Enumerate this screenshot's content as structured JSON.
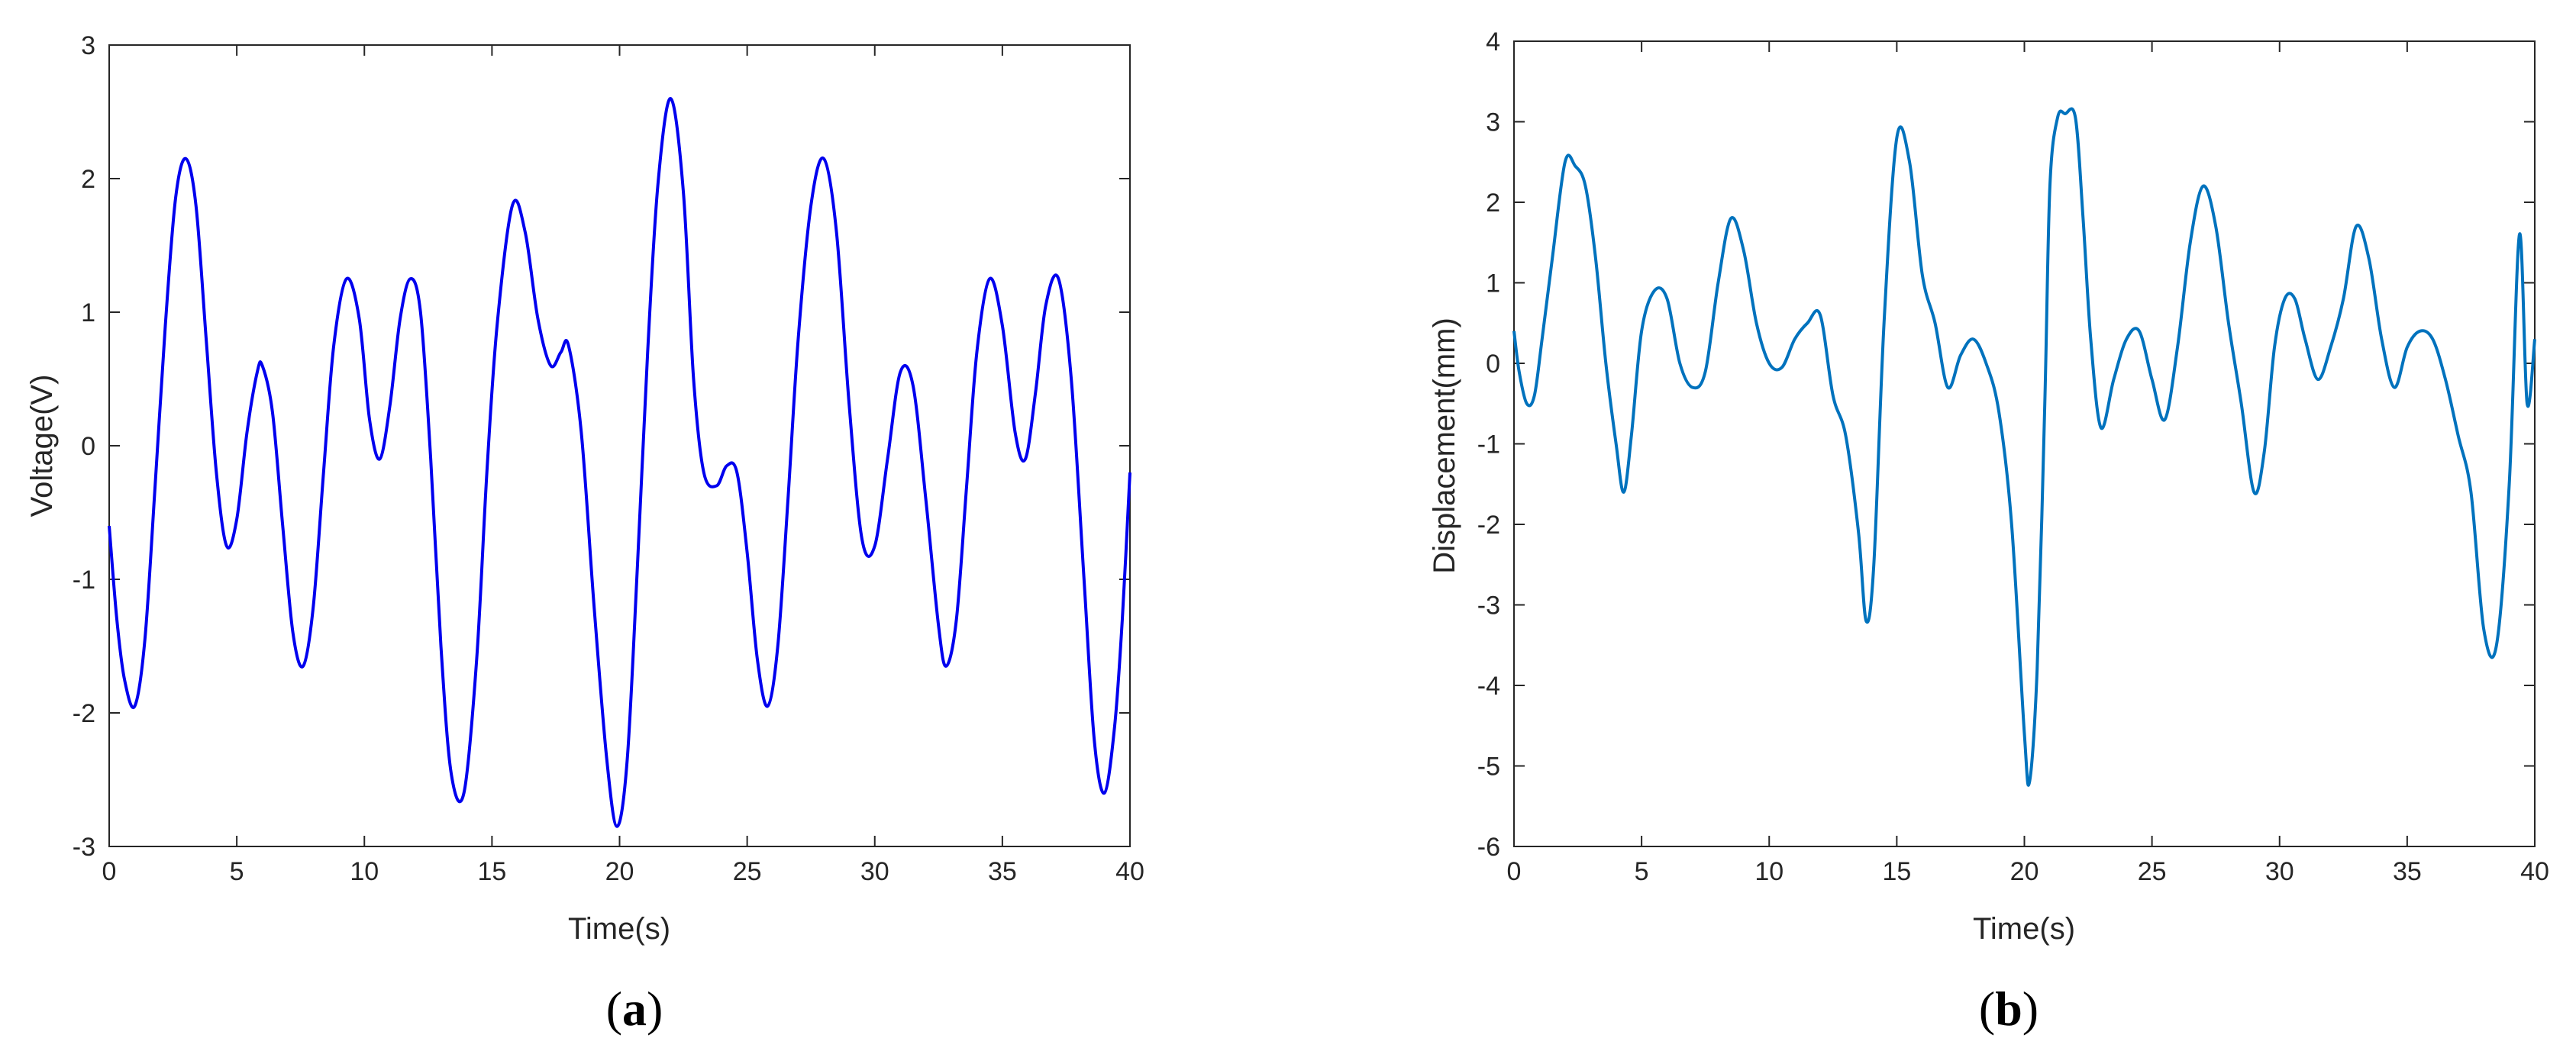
{
  "chart_data": [
    {
      "type": "line",
      "panel_label": "(a)",
      "panel_letter": "a",
      "xlabel": "Time(s)",
      "ylabel": "Voltage(V)",
      "xlim": [
        0,
        40
      ],
      "ylim": [
        -3,
        3
      ],
      "xticks": [
        0,
        5,
        10,
        15,
        20,
        25,
        30,
        35,
        40
      ],
      "yticks": [
        -3,
        -2,
        -1,
        0,
        1,
        2,
        3
      ],
      "grid": false,
      "line_color": "#0000ee",
      "series": [
        {
          "x": [
            0,
            0.3,
            0.6,
            1.0,
            1.4,
            1.8,
            2.2,
            2.6,
            3.0,
            3.4,
            3.8,
            4.2,
            4.6,
            5.0,
            5.4,
            5.8,
            6.0,
            6.4,
            6.8,
            7.2,
            7.6,
            8.0,
            8.4,
            8.8,
            9.3,
            9.8,
            10.2,
            10.6,
            11.0,
            11.4,
            11.8,
            12.2,
            12.6,
            13.0,
            13.4,
            13.9,
            14.4,
            14.8,
            15.2,
            15.8,
            16.3,
            16.8,
            17.3,
            17.7,
            18.0,
            18.5,
            19.0,
            19.5,
            19.9,
            20.3,
            20.7,
            21.1,
            21.5,
            22.0,
            22.5,
            22.9,
            23.3,
            23.8,
            24.2,
            24.6,
            25.0,
            25.4,
            25.8,
            26.2,
            26.6,
            27.0,
            27.5,
            28.0,
            28.5,
            29.0,
            29.5,
            30.0,
            30.5,
            31.0,
            31.5,
            32.0,
            32.5,
            32.8,
            33.2,
            33.6,
            34.0,
            34.5,
            35.0,
            35.5,
            35.9,
            36.3,
            36.7,
            37.2,
            37.7,
            38.2,
            38.6,
            39.0,
            39.4,
            39.7,
            40.0
          ],
          "y": [
            -0.6,
            -1.3,
            -1.75,
            -1.95,
            -1.45,
            -0.3,
            0.9,
            1.85,
            2.15,
            1.8,
            0.8,
            -0.2,
            -0.75,
            -0.55,
            0.1,
            0.55,
            0.6,
            0.25,
            -0.6,
            -1.4,
            -1.65,
            -1.2,
            -0.2,
            0.75,
            1.25,
            0.95,
            0.2,
            -0.1,
            0.3,
            0.95,
            1.25,
            1.0,
            -0.1,
            -1.5,
            -2.45,
            -2.6,
            -1.6,
            -0.2,
            0.9,
            1.8,
            1.6,
            0.95,
            0.6,
            0.7,
            0.75,
            0.1,
            -1.2,
            -2.35,
            -2.85,
            -2.35,
            -0.9,
            0.7,
            1.95,
            2.6,
            1.9,
            0.5,
            -0.2,
            -0.3,
            -0.15,
            -0.2,
            -0.8,
            -1.6,
            -1.95,
            -1.5,
            -0.4,
            0.8,
            1.8,
            2.15,
            1.6,
            0.3,
            -0.7,
            -0.75,
            -0.1,
            0.55,
            0.45,
            -0.4,
            -1.35,
            -1.65,
            -1.3,
            -0.3,
            0.7,
            1.25,
            0.9,
            0.1,
            -0.1,
            0.4,
            1.05,
            1.25,
            0.5,
            -1.0,
            -2.2,
            -2.6,
            -2.1,
            -1.3,
            -0.2
          ]
        }
      ]
    },
    {
      "type": "line",
      "panel_label": "(b)",
      "panel_letter": "b",
      "xlabel": "Time(s)",
      "ylabel": "Displacement(mm)",
      "xlim": [
        0,
        40
      ],
      "ylim": [
        -6,
        4
      ],
      "xticks": [
        0,
        5,
        10,
        15,
        20,
        25,
        30,
        35,
        40
      ],
      "yticks": [
        -6,
        -5,
        -4,
        -3,
        -2,
        -1,
        0,
        1,
        2,
        3,
        4
      ],
      "grid": false,
      "line_color": "#0072bd",
      "series": [
        {
          "x": [
            0,
            0.2,
            0.5,
            0.8,
            1.1,
            1.5,
            2.0,
            2.4,
            2.8,
            3.2,
            3.6,
            4.0,
            4.3,
            4.6,
            5.0,
            5.5,
            6.0,
            6.5,
            7.0,
            7.5,
            8.0,
            8.5,
            9.0,
            9.5,
            10.0,
            10.5,
            11.0,
            11.5,
            12.0,
            12.5,
            13.0,
            13.5,
            13.8,
            14.1,
            14.5,
            15.0,
            15.5,
            16.0,
            16.5,
            17.0,
            17.5,
            18.0,
            18.5,
            19.0,
            19.5,
            20.0,
            20.2,
            20.5,
            20.8,
            21.0,
            21.3,
            21.6,
            22.0,
            22.3,
            22.6,
            23.0,
            23.5,
            24.0,
            24.5,
            25.0,
            25.5,
            26.0,
            26.5,
            27.0,
            27.5,
            28.0,
            28.5,
            29.0,
            29.4,
            29.8,
            30.2,
            30.6,
            31.0,
            31.5,
            32.0,
            32.5,
            33.0,
            33.5,
            34.0,
            34.5,
            35.0,
            35.5,
            36.0,
            36.5,
            37.0,
            37.5,
            38.0,
            38.5,
            39.0,
            39.4,
            39.7,
            40.0
          ],
          "y": [
            0.4,
            -0.1,
            -0.5,
            -0.4,
            0.3,
            1.3,
            2.5,
            2.45,
            2.2,
            1.3,
            0.0,
            -1.0,
            -1.6,
            -0.9,
            0.4,
            0.9,
            0.8,
            0.0,
            -0.3,
            -0.1,
            1.0,
            1.8,
            1.4,
            0.5,
            0.0,
            -0.05,
            0.3,
            0.5,
            0.6,
            -0.4,
            -0.9,
            -2.1,
            -3.2,
            -2.5,
            0.5,
            2.8,
            2.5,
            1.1,
            0.5,
            -0.3,
            0.1,
            0.3,
            0.0,
            -0.6,
            -2.0,
            -4.6,
            -5.2,
            -3.8,
            -0.5,
            2.2,
            3.05,
            3.1,
            3.05,
            1.8,
            0.3,
            -0.8,
            -0.2,
            0.3,
            0.4,
            -0.2,
            -0.7,
            0.2,
            1.5,
            2.2,
            1.7,
            0.5,
            -0.5,
            -1.6,
            -1.1,
            0.2,
            0.8,
            0.8,
            0.3,
            -0.2,
            0.2,
            0.8,
            1.7,
            1.3,
            0.3,
            -0.3,
            0.2,
            0.4,
            0.3,
            -0.2,
            -0.9,
            -1.6,
            -3.3,
            -3.5,
            -1.5,
            1.6,
            -0.5,
            0.3
          ]
        }
      ]
    }
  ]
}
